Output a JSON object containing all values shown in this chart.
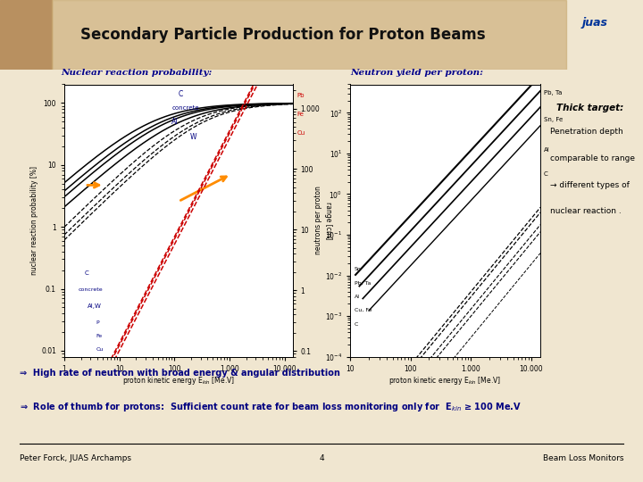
{
  "title": "Secondary Particle Production for Proton Beams",
  "header_bg": "#d4b896",
  "main_bg": "#f0e6d0",
  "plot_bg": "#ffffff",
  "left_panel_title": "Nuclear reaction probability:",
  "right_panel_title": "Neutron yield per proton:",
  "left_xlabel": "proton kinetic energy E$_{kin}$ [Me.V]",
  "right_xlabel": "proton kinetic energy E$_{kin}$ [Me.V]",
  "left_ylabel": "nuclear reaction probability [%]",
  "range_ylabel": "range [cm]",
  "neutron_ylabel": "neutrons per proton",
  "bullet1": "⇒  High rate of neutron with broad energy & angular distribution",
  "bullet2": "⇒  Role of thumb for protons:  Sufficient count rate for beam loss monitoring only for  E$_{kin}$ ≥ 100 Me.V",
  "footer_left": "Peter Forck, JUAS Archamps",
  "footer_center": "4",
  "footer_right": "Beam Loss Monitors",
  "thick_target_title": "Thick target:",
  "thick_target_lines": [
    "Penetration depth",
    "comparable to range",
    "→ different types of",
    "nuclear reaction ."
  ],
  "panel_title_color": "#00008b",
  "bullet_color": "#000080",
  "title_color": "#111111",
  "curve_color": "#000000",
  "red_color": "#cc0000",
  "orange_color": "#ff8c00"
}
